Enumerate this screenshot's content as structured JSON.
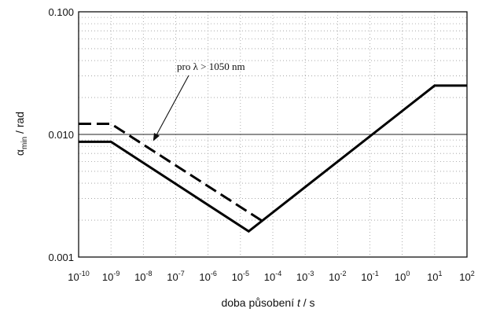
{
  "chart_data": {
    "type": "line",
    "xscale": "log",
    "yscale": "log",
    "xlim": [
      1e-10,
      100
    ],
    "ylim": [
      0.001,
      0.1
    ],
    "grid": true,
    "xlabel_prefix": "doba působení ",
    "xlabel_var": "t",
    "xlabel_suffix": " / s",
    "ylabel_var": "α",
    "ylabel_sub": "min",
    "ylabel_suffix": " / rad",
    "y_ticks": [
      {
        "value": 0.001,
        "label": "0.001"
      },
      {
        "value": 0.01,
        "label": "0.010"
      },
      {
        "value": 0.1,
        "label": "0.100"
      }
    ],
    "x_ticks": [
      {
        "value": 1e-10,
        "base": "10",
        "exp": "-10"
      },
      {
        "value": 1e-09,
        "base": "10",
        "exp": "-9"
      },
      {
        "value": 1e-08,
        "base": "10",
        "exp": "-8"
      },
      {
        "value": 1e-07,
        "base": "10",
        "exp": "-7"
      },
      {
        "value": 1e-06,
        "base": "10",
        "exp": "-6"
      },
      {
        "value": 1e-05,
        "base": "10",
        "exp": "-5"
      },
      {
        "value": 0.0001,
        "base": "10",
        "exp": "-4"
      },
      {
        "value": 0.001,
        "base": "10",
        "exp": "-3"
      },
      {
        "value": 0.01,
        "base": "10",
        "exp": "-2"
      },
      {
        "value": 0.1,
        "base": "10",
        "exp": "-1"
      },
      {
        "value": 1,
        "base": "10",
        "exp": "0"
      },
      {
        "value": 10,
        "base": "10",
        "exp": "1"
      },
      {
        "value": 100,
        "base": "10",
        "exp": "2"
      }
    ],
    "reference_line_y": 0.01,
    "series": [
      {
        "style": "solid",
        "x": [
          1e-10,
          1e-09,
          1.8e-05,
          10,
          100
        ],
        "y": [
          0.0087,
          0.0087,
          0.00162,
          0.025,
          0.025
        ]
      },
      {
        "style": "dashed",
        "x": [
          1e-10,
          1e-09,
          5e-05
        ],
        "y": [
          0.0122,
          0.0122,
          0.00195
        ]
      }
    ],
    "annotation": {
      "text": "pro λ > 1050 nm",
      "arrow_to_x": 2e-08,
      "arrow_to_y": 0.0088
    }
  }
}
